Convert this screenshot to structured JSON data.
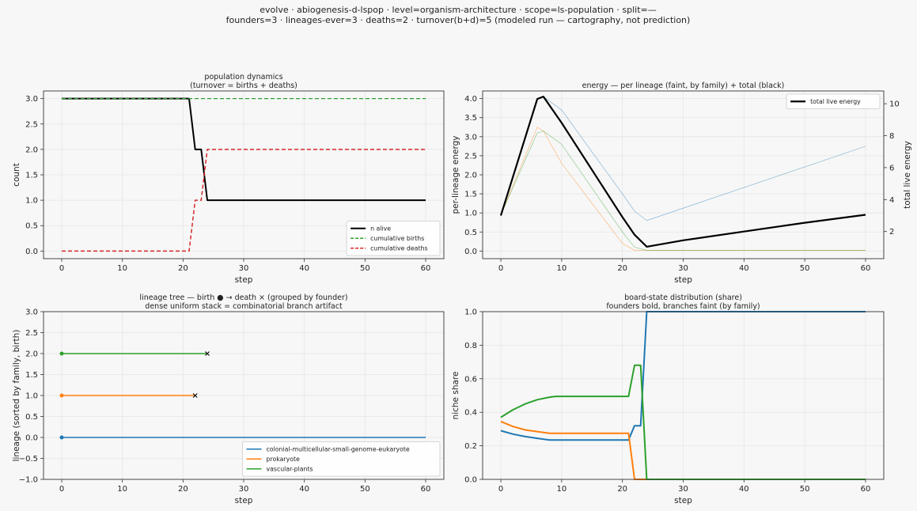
{
  "suptitle": {
    "line1": "evolve · abiogenesis-d-lspop · level=organism-architecture · scope=ls-population · split=—",
    "line2": "founders=3 · lineages-ever=3 · deaths=2 · turnover(b+d)=5   (modeled run — cartography, not prediction)"
  },
  "colors": {
    "blue": "#1f77b4",
    "orange": "#ff7f0e",
    "green": "#2ca02c",
    "red": "#d62728",
    "black": "#000000"
  },
  "chart_data": [
    {
      "type": "line",
      "title": [
        "population dynamics",
        "(turnover = births + deaths)"
      ],
      "xlabel": "step",
      "ylabel": "count",
      "xlim": [
        -3,
        63
      ],
      "ylim": [
        -0.15,
        3.15
      ],
      "xticks": [
        0,
        10,
        20,
        30,
        40,
        50,
        60
      ],
      "yticks": [
        0.0,
        0.5,
        1.0,
        1.5,
        2.0,
        2.5,
        3.0
      ],
      "ytick_labels": [
        "0.0",
        "0.5",
        "1.0",
        "1.5",
        "2.0",
        "2.5",
        "3.0"
      ],
      "grid": true,
      "legend_position": "lower-right",
      "series": [
        {
          "name": "n alive",
          "color": "#000000",
          "width": 2,
          "dash": "",
          "points": [
            [
              0,
              3
            ],
            [
              21,
              3
            ],
            [
              22,
              2
            ],
            [
              23,
              2
            ],
            [
              24,
              1
            ],
            [
              60,
              1
            ]
          ]
        },
        {
          "name": "cumulative births",
          "color": "#2ca02c",
          "width": 1.2,
          "dash": "5,3",
          "points": [
            [
              0,
              3
            ],
            [
              60,
              3
            ]
          ]
        },
        {
          "name": "cumulative deaths",
          "color": "#d62728",
          "width": 1.5,
          "dash": "5,3",
          "points": [
            [
              0,
              0
            ],
            [
              21,
              0
            ],
            [
              22,
              1
            ],
            [
              23,
              1
            ],
            [
              24,
              2
            ],
            [
              60,
              2
            ]
          ]
        }
      ]
    },
    {
      "type": "line",
      "title": [
        "energy — per lineage (faint, by family) + total (black)"
      ],
      "xlabel": "step",
      "ylabel": "per-lineage energy",
      "ylabel_right": "total live energy",
      "xlim": [
        -3,
        63
      ],
      "ylim": [
        -0.2,
        4.2
      ],
      "ylim_right": [
        0.3,
        10.8
      ],
      "xticks": [
        0,
        10,
        20,
        30,
        40,
        50,
        60
      ],
      "yticks": [
        0.0,
        0.5,
        1.0,
        1.5,
        2.0,
        2.5,
        3.0,
        3.5,
        4.0
      ],
      "ytick_labels": [
        "0.0",
        "0.5",
        "1.0",
        "1.5",
        "2.0",
        "2.5",
        "3.0",
        "3.5",
        "4.0"
      ],
      "yticks_right": [
        2,
        4,
        6,
        8,
        10
      ],
      "grid": true,
      "legend_position": "upper-right",
      "series": [
        {
          "name": "colonial-multicellular-small-genome-eukaryote",
          "color": "#1f77b4",
          "width": 0.6,
          "opacity": 0.6,
          "axis": "left",
          "points": [
            [
              0,
              0.95
            ],
            [
              6,
              4.0
            ],
            [
              7,
              4.05
            ],
            [
              10,
              3.7
            ],
            [
              20,
              1.5
            ],
            [
              22,
              1.05
            ],
            [
              24,
              0.8
            ],
            [
              60,
              2.75
            ]
          ]
        },
        {
          "name": "prokaryote",
          "color": "#ff7f0e",
          "width": 0.6,
          "opacity": 0.6,
          "axis": "left",
          "points": [
            [
              0,
              0.95
            ],
            [
              6,
              3.25
            ],
            [
              7,
              3.15
            ],
            [
              10,
              2.3
            ],
            [
              20,
              0.2
            ],
            [
              22,
              0.02
            ],
            [
              60,
              0.02
            ]
          ]
        },
        {
          "name": "vascular-plants",
          "color": "#2ca02c",
          "width": 0.6,
          "opacity": 0.6,
          "axis": "left",
          "points": [
            [
              0,
              0.95
            ],
            [
              6,
              3.1
            ],
            [
              7,
              3.15
            ],
            [
              10,
              2.8
            ],
            [
              20,
              0.5
            ],
            [
              22,
              0.1
            ],
            [
              24,
              0.02
            ],
            [
              60,
              0.02
            ]
          ]
        },
        {
          "name": "total live energy",
          "color": "#000000",
          "width": 2.2,
          "opacity": 1,
          "axis": "right",
          "points": [
            [
              0,
              3.0
            ],
            [
              6,
              10.3
            ],
            [
              7,
              10.45
            ],
            [
              10,
              8.8
            ],
            [
              20,
              2.9
            ],
            [
              22,
              1.8
            ],
            [
              24,
              1.05
            ],
            [
              30,
              1.45
            ],
            [
              40,
              2.0
            ],
            [
              50,
              2.55
            ],
            [
              60,
              3.05
            ]
          ]
        }
      ]
    },
    {
      "type": "line",
      "title": [
        "lineage tree — birth ● → death ×  (grouped by founder)",
        "dense uniform stack = combinatorial branch artifact"
      ],
      "xlabel": "step",
      "ylabel": "lineage (sorted by family, birth)",
      "xlim": [
        -3,
        63
      ],
      "ylim": [
        -1.0,
        3.0
      ],
      "xticks": [
        0,
        10,
        20,
        30,
        40,
        50,
        60
      ],
      "yticks": [
        -1.0,
        -0.5,
        0.0,
        0.5,
        1.0,
        1.5,
        2.0,
        2.5,
        3.0
      ],
      "ytick_labels": [
        "−1.0",
        "−0.5",
        "0.0",
        "0.5",
        "1.0",
        "1.5",
        "2.0",
        "2.5",
        "3.0"
      ],
      "grid": true,
      "legend_position": "lower-right",
      "series": [
        {
          "name": "colonial-multicellular-small-genome-eukaryote",
          "color": "#1f77b4",
          "lineage": 0,
          "birth": 0,
          "end": 60,
          "died": false
        },
        {
          "name": "prokaryote",
          "color": "#ff7f0e",
          "lineage": 1,
          "birth": 0,
          "end": 22,
          "died": true
        },
        {
          "name": "vascular-plants",
          "color": "#2ca02c",
          "lineage": 2,
          "birth": 0,
          "end": 24,
          "died": true
        }
      ]
    },
    {
      "type": "line",
      "title": [
        "board-state distribution (share)",
        "founders bold, branches faint (by family)"
      ],
      "xlabel": "step",
      "ylabel": "niche share",
      "xlim": [
        -3,
        63
      ],
      "ylim": [
        0.0,
        1.0
      ],
      "xticks": [
        0,
        10,
        20,
        30,
        40,
        50,
        60
      ],
      "yticks": [
        0.0,
        0.2,
        0.4,
        0.6,
        0.8,
        1.0
      ],
      "ytick_labels": [
        "0.0",
        "0.2",
        "0.4",
        "0.6",
        "0.8",
        "1.0"
      ],
      "grid": true,
      "series": [
        {
          "name": "colonial-multicellular-small-genome-eukaryote",
          "color": "#1f77b4",
          "width": 2,
          "points": [
            [
              0,
              0.29
            ],
            [
              2,
              0.27
            ],
            [
              4,
              0.255
            ],
            [
              6,
              0.245
            ],
            [
              8,
              0.235
            ],
            [
              10,
              0.235
            ],
            [
              21,
              0.235
            ],
            [
              22,
              0.32
            ],
            [
              23,
              0.32
            ],
            [
              24,
              1.0
            ],
            [
              60,
              1.0
            ]
          ]
        },
        {
          "name": "prokaryote",
          "color": "#ff7f0e",
          "width": 2,
          "points": [
            [
              0,
              0.345
            ],
            [
              2,
              0.315
            ],
            [
              4,
              0.295
            ],
            [
              6,
              0.285
            ],
            [
              8,
              0.275
            ],
            [
              10,
              0.275
            ],
            [
              21,
              0.275
            ],
            [
              22,
              0.0
            ],
            [
              60,
              0.0
            ]
          ]
        },
        {
          "name": "vascular-plants",
          "color": "#2ca02c",
          "width": 2,
          "points": [
            [
              0,
              0.37
            ],
            [
              2,
              0.415
            ],
            [
              4,
              0.45
            ],
            [
              6,
              0.475
            ],
            [
              8,
              0.49
            ],
            [
              9,
              0.495
            ],
            [
              10,
              0.495
            ],
            [
              21,
              0.495
            ],
            [
              22,
              0.68
            ],
            [
              23,
              0.68
            ],
            [
              24,
              0.0
            ],
            [
              60,
              0.0
            ]
          ]
        }
      ]
    }
  ]
}
